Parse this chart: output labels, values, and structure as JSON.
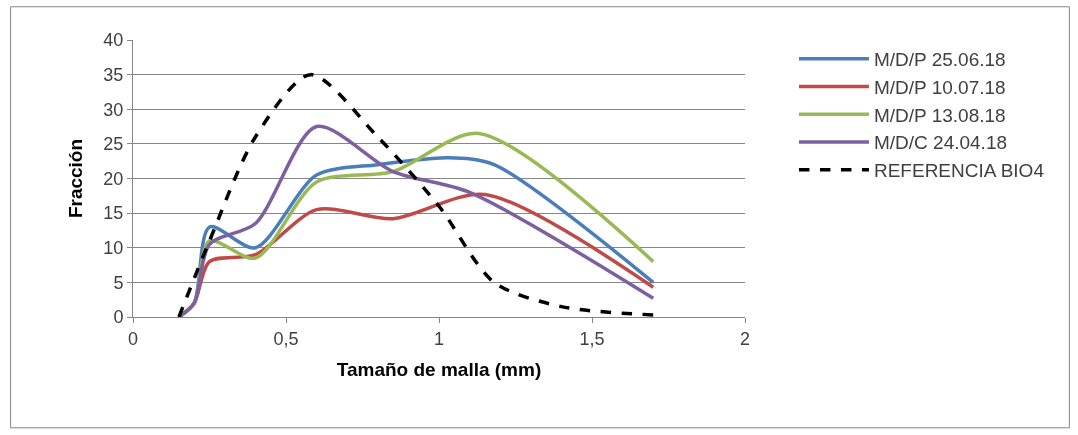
{
  "chart_data": {
    "type": "line",
    "xlabel": "Tamaño de malla (mm)",
    "ylabel": "Fracción",
    "xlim": [
      0,
      2
    ],
    "xticks": [
      0,
      {
        "value": 0.5,
        "label": "0,5"
      },
      1,
      {
        "value": 1.5,
        "label": "1,5"
      },
      2
    ],
    "ylim": [
      0,
      40
    ],
    "yticks": [
      0,
      5,
      10,
      15,
      20,
      25,
      30,
      35,
      40
    ],
    "grid": "y",
    "legend": "right",
    "marker": "none",
    "series": [
      {
        "name": "M/D/P 25.06.18",
        "color": "#4a7ebb",
        "line_style": "solid",
        "x": [
          0.15,
          0.2,
          0.25,
          0.4,
          0.6,
          0.8,
          1.03,
          1.18,
          1.7
        ],
        "values": [
          0,
          2,
          13,
          10,
          20.5,
          22,
          23,
          22,
          5
        ]
      },
      {
        "name": "M/D/P 10.07.18",
        "color": "#be4b48",
        "line_style": "solid",
        "x": [
          0.15,
          0.2,
          0.25,
          0.4,
          0.6,
          0.85,
          1.15,
          1.7
        ],
        "values": [
          0,
          2,
          8,
          9,
          15.5,
          14.2,
          17.7,
          4.3
        ]
      },
      {
        "name": "M/D/P 13.08.18",
        "color": "#98b954",
        "line_style": "solid",
        "x": [
          0.15,
          0.2,
          0.25,
          0.4,
          0.6,
          0.85,
          1.13,
          1.7
        ],
        "values": [
          0,
          2,
          11,
          8.5,
          19.5,
          21,
          26.5,
          8
        ]
      },
      {
        "name": "M/D/C 24.04.18",
        "color": "#7d60a0",
        "line_style": "solid",
        "x": [
          0.15,
          0.2,
          0.25,
          0.4,
          0.6,
          0.85,
          1.1,
          1.7
        ],
        "values": [
          0,
          2,
          10.5,
          13.5,
          27.5,
          21,
          18,
          2.7
        ]
      },
      {
        "name": "REFERENCIA BIO4",
        "color": "#000000",
        "line_style": "dashed",
        "x": [
          0.15,
          0.25,
          0.4,
          0.58,
          0.8,
          1.0,
          1.18,
          1.4,
          1.7
        ],
        "values": [
          0,
          11,
          26,
          35,
          26,
          16,
          5,
          1.5,
          0.3
        ]
      }
    ]
  }
}
